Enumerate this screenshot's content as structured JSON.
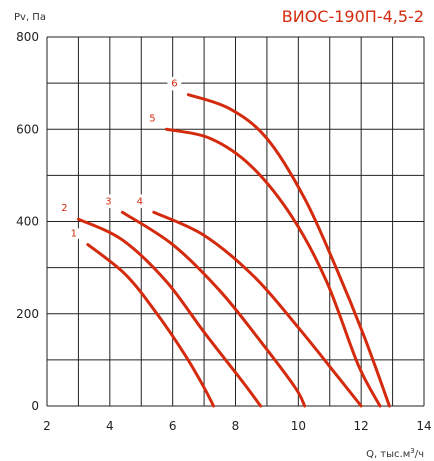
{
  "chart_data": {
    "type": "line",
    "title": "ВИОС-190П-4,5-2",
    "ylabel": "Pv, Па",
    "xlabel_main": "Q, тыс.м",
    "xlabel_sup": "3",
    "xlabel_end": "/ч",
    "xlim": [
      2,
      14
    ],
    "ylim": [
      0,
      800
    ],
    "x_ticks": [
      "2",
      "4",
      "6",
      "8",
      "10",
      "12",
      "14"
    ],
    "y_ticks": [
      "0",
      "200",
      "400",
      "600",
      "800"
    ],
    "grid": true,
    "colors": {
      "curve": "#d42b0e",
      "title": "#d42b0e",
      "grid": "#222222"
    },
    "series": [
      {
        "name": "1",
        "points": [
          [
            3.3,
            350
          ],
          [
            4.5,
            285
          ],
          [
            5.5,
            200
          ],
          [
            6.4,
            110
          ],
          [
            7.0,
            40
          ],
          [
            7.3,
            0
          ]
        ]
      },
      {
        "name": "2",
        "points": [
          [
            3.0,
            405
          ],
          [
            4.4,
            360
          ],
          [
            5.8,
            270
          ],
          [
            7.0,
            160
          ],
          [
            8.2,
            55
          ],
          [
            8.8,
            0
          ]
        ]
      },
      {
        "name": "3",
        "points": [
          [
            4.4,
            420
          ],
          [
            6.0,
            350
          ],
          [
            7.5,
            250
          ],
          [
            8.8,
            140
          ],
          [
            9.9,
            40
          ],
          [
            10.2,
            0
          ]
        ]
      },
      {
        "name": "4",
        "points": [
          [
            5.4,
            420
          ],
          [
            7.0,
            370
          ],
          [
            8.6,
            280
          ],
          [
            10.0,
            170
          ],
          [
            11.3,
            60
          ],
          [
            12.0,
            0
          ]
        ]
      },
      {
        "name": "5",
        "points": [
          [
            5.8,
            600
          ],
          [
            7.2,
            580
          ],
          [
            8.5,
            520
          ],
          [
            9.8,
            410
          ],
          [
            10.9,
            270
          ],
          [
            11.9,
            90
          ],
          [
            12.6,
            0
          ]
        ]
      },
      {
        "name": "6",
        "points": [
          [
            6.5,
            675
          ],
          [
            7.8,
            645
          ],
          [
            9.0,
            580
          ],
          [
            10.2,
            450
          ],
          [
            11.2,
            300
          ],
          [
            12.1,
            150
          ],
          [
            12.9,
            0
          ]
        ]
      }
    ]
  }
}
